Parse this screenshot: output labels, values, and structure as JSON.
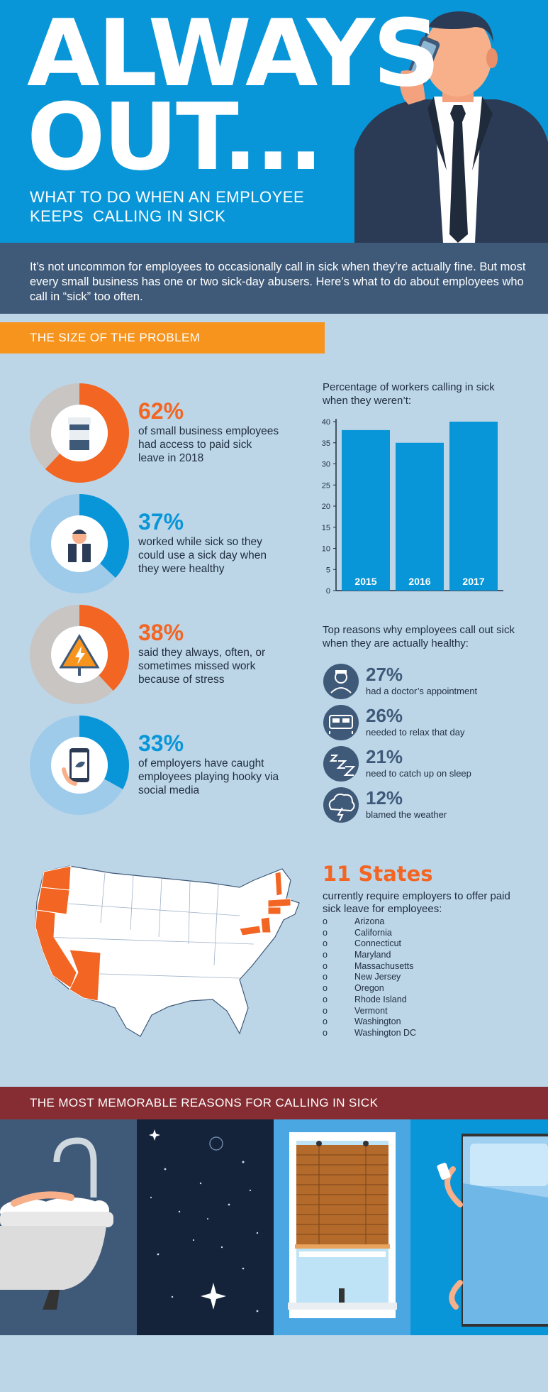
{
  "header": {
    "title_line1": "ALWAYS",
    "title_line2": "OUT...",
    "subtitle_line1": "WHAT TO DO WHEN AN EMPLOYEE",
    "subtitle_line2": "KEEPS  CALLING IN SICK"
  },
  "intro": {
    "text": "It’s not uncommon for employees to occasionally call in sick when they’re actually fine. But most every small business has one or two sick-day abusers. Here’s what to do about employees who call in “sick” too often."
  },
  "problem": {
    "section_title": "THE SIZE OF THE PROBLEM",
    "stats": [
      {
        "pct": "62%",
        "value": 62,
        "text": "of small business employees had access to paid sick leave in 2018",
        "color": "#f26522",
        "icon": "pill-bottle-icon"
      },
      {
        "pct": "37%",
        "value": 37,
        "text": "worked while sick so they could use a sick day when they were healthy",
        "color": "#0996d8",
        "icon": "businessman-icon"
      },
      {
        "pct": "38%",
        "value": 38,
        "text": "said they always, often, or sometimes missed work because of stress",
        "color": "#f26522",
        "icon": "high-voltage-warning-icon"
      },
      {
        "pct": "33%",
        "value": 33,
        "text": "of employers have caught employees playing hooky via social media",
        "color": "#0996d8",
        "icon": "smartphone-bird-icon"
      }
    ]
  },
  "chart_data": {
    "type": "bar",
    "title": "Percentage of workers calling in sick when they weren’t:",
    "categories": [
      "2015",
      "2016",
      "2017"
    ],
    "values": [
      38,
      35,
      40
    ],
    "yticks": [
      "0",
      "5",
      "10",
      "15",
      "20",
      "25",
      "30",
      "35",
      "40"
    ],
    "ylim": [
      0,
      40
    ],
    "grid": false,
    "bar_color": "#0996d8"
  },
  "reasons": {
    "title": "Top reasons why employees call out sick when they are actually healthy:",
    "items": [
      {
        "pct": "27%",
        "text": "had a doctor’s appointment",
        "icon": "doctor-icon"
      },
      {
        "pct": "26%",
        "text": "needed to relax that day",
        "icon": "bed-icon"
      },
      {
        "pct": "21%",
        "text": "need to catch up on sleep",
        "icon": "sleep-zzz-icon"
      },
      {
        "pct": "12%",
        "text": "blamed the weather",
        "icon": "storm-cloud-icon"
      }
    ]
  },
  "states": {
    "headline": "11 States",
    "subtitle": "currently require employers to offer paid sick leave for employees:",
    "bullet": "o",
    "list": [
      "Arizona",
      "California",
      "Connecticut",
      "Maryland",
      "Massachusetts",
      "New Jersey",
      "Oregon",
      "Rhode Island",
      "Vermont",
      "Washington",
      "Washington DC"
    ]
  },
  "memorable": {
    "section_title": "THE MOST MEMORABLE REASONS FOR CALLING IN SICK",
    "panels": [
      "bathtub-icon",
      "night-sky-icon",
      "window-blinds-icon",
      "bed-phone-icon"
    ]
  },
  "colors": {
    "blue": "#0996d8",
    "navy": "#3f5a79",
    "orange": "#f26522",
    "amber": "#f7941d",
    "maroon": "#862d33",
    "background": "#bcd6e8"
  }
}
